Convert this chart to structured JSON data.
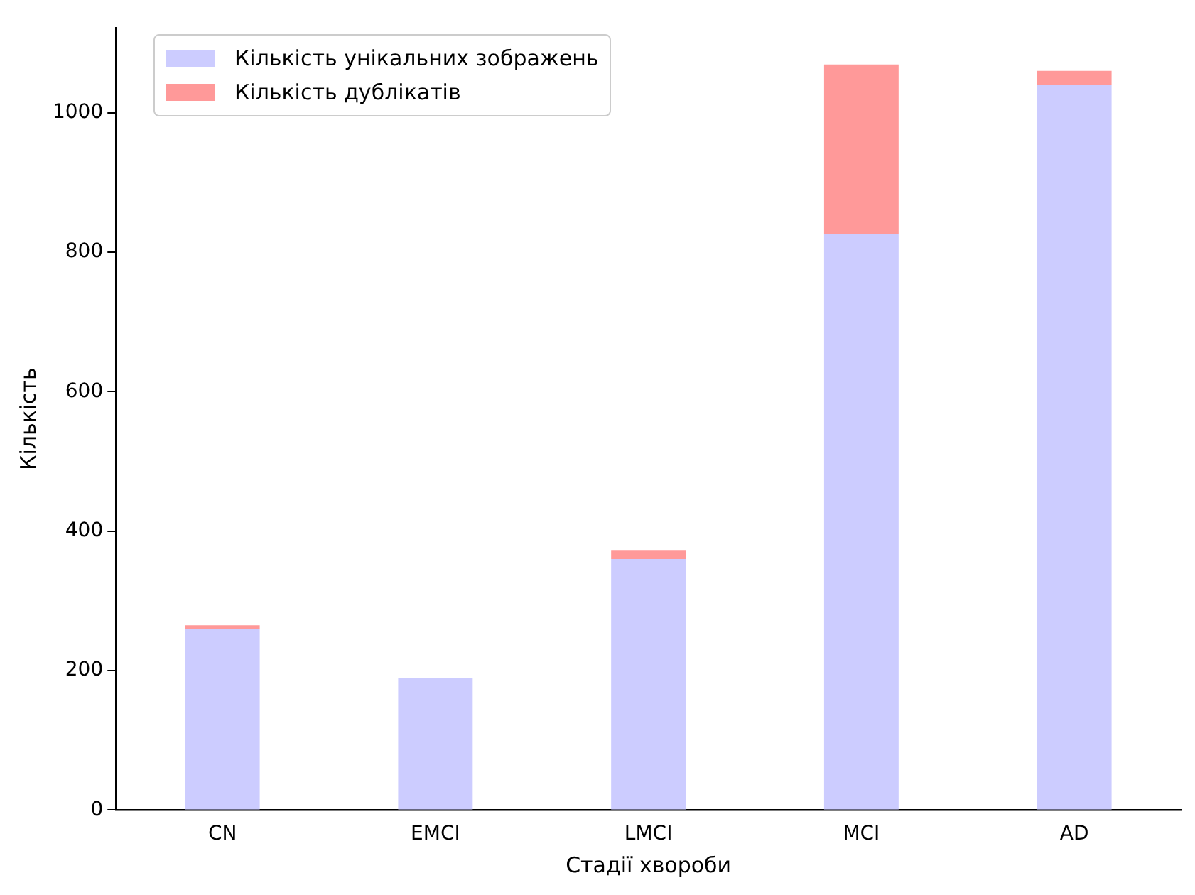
{
  "chart_data": {
    "type": "bar",
    "stacked": true,
    "xlabel": "Стадії хвороби",
    "ylabel": "Кількість",
    "categories": [
      "CN",
      "EMCI",
      "LMCI",
      "MCI",
      "AD"
    ],
    "series": [
      {
        "name": "Кількість унікальних зображень",
        "color": "#ccccff",
        "values": [
          260,
          189,
          360,
          826,
          1040
        ]
      },
      {
        "name": "Кількість дублікатів",
        "color": "#ff9999",
        "values": [
          5,
          0,
          12,
          243,
          20
        ]
      }
    ],
    "ylim": [
      0,
      1122
    ],
    "yticks": [
      0,
      200,
      400,
      600,
      800,
      1000
    ],
    "grid": false,
    "legend": "top left"
  }
}
